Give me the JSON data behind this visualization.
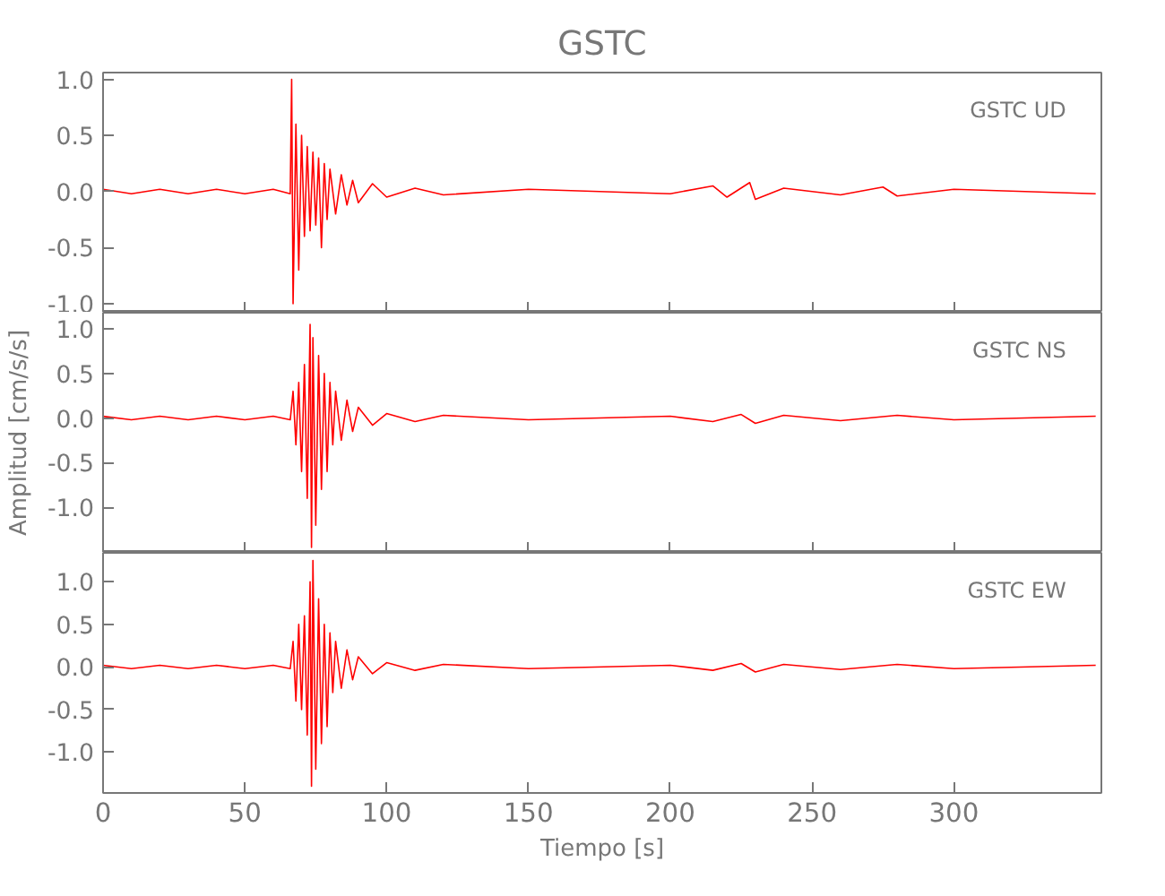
{
  "chart_data": [
    {
      "type": "line",
      "title": "GSTC",
      "annotations": [
        "GSTC   UD"
      ],
      "xlim": [
        0,
        352
      ],
      "xticks": [
        0,
        50,
        100,
        150,
        200,
        250,
        300
      ],
      "ylim": [
        -1.08,
        1.06
      ],
      "yticks": [
        {
          "value": -1,
          "label": "-1.0"
        },
        {
          "value": -0.5,
          "label": "-0.5"
        },
        {
          "value": 0,
          "label": "0.0"
        },
        {
          "value": 0.5,
          "label": "0.5"
        },
        {
          "value": 1,
          "label": "1.0"
        }
      ],
      "tick_labels": "y",
      "grid": false,
      "series": [
        {
          "color": "#ff0000",
          "x": [
            0,
            10,
            20,
            30,
            40,
            50,
            60,
            66,
            66.5,
            67,
            68,
            69,
            70,
            71,
            72,
            73,
            74,
            75,
            76,
            77,
            78,
            79,
            80,
            82,
            84,
            86,
            88,
            90,
            95,
            100,
            110,
            120,
            150,
            200,
            215,
            220,
            228,
            230,
            240,
            260,
            275,
            280,
            300,
            350
          ],
          "values": [
            0.02,
            -0.02,
            0.02,
            -0.02,
            0.02,
            -0.02,
            0.02,
            -0.02,
            1.0,
            -1.0,
            0.6,
            -0.7,
            0.5,
            -0.4,
            0.4,
            -0.35,
            0.35,
            -0.3,
            0.3,
            -0.5,
            0.25,
            -0.25,
            0.2,
            -0.2,
            0.15,
            -0.12,
            0.1,
            -0.1,
            0.07,
            -0.05,
            0.03,
            -0.03,
            0.02,
            -0.02,
            0.05,
            -0.05,
            0.08,
            -0.07,
            0.03,
            -0.03,
            0.04,
            -0.04,
            0.02,
            -0.02
          ]
        }
      ]
    },
    {
      "type": "line",
      "ylabel": "Amplitud [cm/s/s]",
      "annotations": [
        "GSTC   NS"
      ],
      "xlim": [
        0,
        352
      ],
      "xticks": [
        0,
        50,
        100,
        150,
        200,
        250,
        300
      ],
      "ylim": [
        -1.51,
        1.18
      ],
      "yticks": [
        {
          "value": -1,
          "label": "-1.0"
        },
        {
          "value": -0.5,
          "label": "-0.5"
        },
        {
          "value": 0,
          "label": "0.0"
        },
        {
          "value": 0.5,
          "label": "0.5"
        },
        {
          "value": 1,
          "label": "1.0"
        }
      ],
      "tick_labels": "y",
      "grid": false,
      "series": [
        {
          "color": "#ff0000",
          "x": [
            0,
            10,
            20,
            30,
            40,
            50,
            60,
            66,
            67,
            68,
            69,
            70,
            71,
            72,
            73,
            73.5,
            74,
            75,
            76,
            77,
            78,
            79,
            80,
            81,
            82,
            84,
            86,
            88,
            90,
            95,
            100,
            110,
            120,
            150,
            200,
            215,
            225,
            230,
            240,
            260,
            280,
            300,
            350
          ],
          "values": [
            0.02,
            -0.02,
            0.02,
            -0.02,
            0.02,
            -0.02,
            0.02,
            -0.02,
            0.3,
            -0.3,
            0.4,
            -0.6,
            0.6,
            -0.9,
            1.05,
            -1.45,
            0.9,
            -1.2,
            0.7,
            -0.8,
            0.5,
            -0.6,
            0.4,
            -0.3,
            0.3,
            -0.25,
            0.2,
            -0.15,
            0.12,
            -0.08,
            0.05,
            -0.04,
            0.03,
            -0.02,
            0.02,
            -0.04,
            0.04,
            -0.06,
            0.03,
            -0.03,
            0.03,
            -0.02,
            0.02
          ]
        }
      ]
    },
    {
      "type": "line",
      "xlabel": "Tiempo [s]",
      "annotations": [
        "GSTC   EW"
      ],
      "xlim": [
        0,
        352
      ],
      "xticks": [
        0,
        50,
        100,
        150,
        200,
        250,
        300
      ],
      "ylim": [
        -1.48,
        1.34
      ],
      "yticks": [
        {
          "value": -1,
          "label": "-1.0"
        },
        {
          "value": -0.5,
          "label": "-0.5"
        },
        {
          "value": 0,
          "label": "0.0"
        },
        {
          "value": 0.5,
          "label": "0.5"
        },
        {
          "value": 1,
          "label": "1.0"
        }
      ],
      "grid": false,
      "series": [
        {
          "color": "#ff0000",
          "x": [
            0,
            10,
            20,
            30,
            40,
            50,
            60,
            66,
            67,
            68,
            69,
            70,
            71,
            72,
            73,
            73.5,
            74,
            75,
            76,
            77,
            78,
            79,
            80,
            81,
            82,
            84,
            86,
            88,
            90,
            95,
            100,
            110,
            120,
            150,
            200,
            215,
            225,
            230,
            240,
            260,
            280,
            300,
            350
          ],
          "values": [
            0.02,
            -0.02,
            0.02,
            -0.02,
            0.02,
            -0.02,
            0.02,
            -0.02,
            0.3,
            -0.4,
            0.5,
            -0.5,
            0.6,
            -0.8,
            1.0,
            -1.4,
            1.25,
            -1.2,
            0.8,
            -0.9,
            0.5,
            -0.7,
            0.4,
            -0.3,
            0.3,
            -0.25,
            0.2,
            -0.15,
            0.12,
            -0.08,
            0.05,
            -0.04,
            0.03,
            -0.02,
            0.02,
            -0.04,
            0.04,
            -0.06,
            0.03,
            -0.03,
            0.03,
            -0.02,
            0.02
          ]
        }
      ]
    }
  ]
}
